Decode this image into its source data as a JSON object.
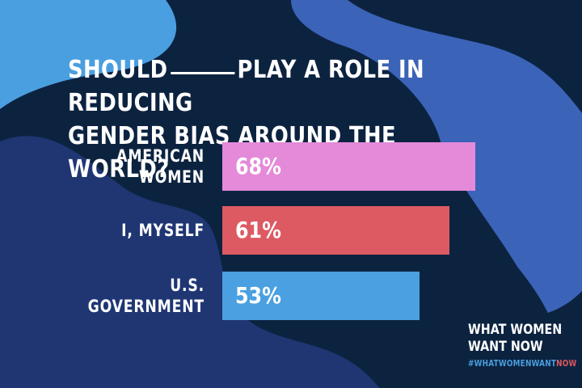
{
  "title": {
    "part1": "SHOULD",
    "part2": "PLAY A ROLE IN REDUCING",
    "line2": "GENDER BIAS AROUND THE WORLD?"
  },
  "colors": {
    "background": "#0c2340",
    "shape_light_blue": "#4a9fe0",
    "shape_mid_blue": "#3b63b8",
    "shape_navy": "#1f3673",
    "tag_accent": "#e0585e",
    "tag_main": "#4a9fe0"
  },
  "chart_data": {
    "type": "bar",
    "orientation": "horizontal",
    "categories": [
      "AMERICAN WOMEN",
      "I, MYSELF",
      "U.S. GOVERNMENT"
    ],
    "category_lines": [
      [
        "AMERICAN",
        "WOMEN"
      ],
      [
        "I, MYSELF"
      ],
      [
        "U.S.",
        "GOVERNMENT"
      ]
    ],
    "values": [
      68,
      61,
      53
    ],
    "value_labels": [
      "68%",
      "61%",
      "53%"
    ],
    "bar_colors": [
      "#e48ad9",
      "#dd5a63",
      "#4aa0e0"
    ],
    "xlim": [
      0,
      100
    ],
    "grid": false,
    "legend": "none"
  },
  "brand": {
    "line1": "WHAT WOMEN",
    "line2": "WANT NOW",
    "hashtag_main": "#WHATWOMENWANT",
    "hashtag_accent": "NOW"
  }
}
